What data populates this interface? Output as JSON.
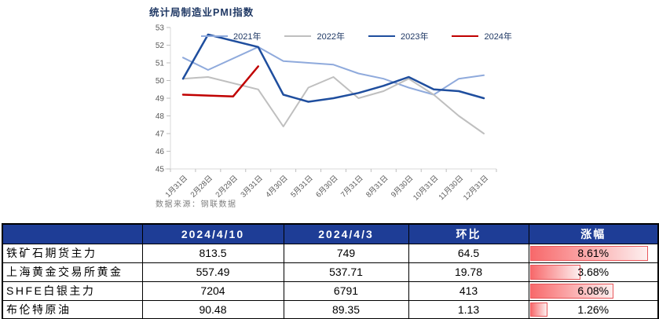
{
  "chart_data": {
    "type": "line",
    "title": "统计局制造业PMI指数",
    "source_note": "数据来源：钢联数据",
    "categories": [
      "1月31日",
      "2月28日",
      "2月29日",
      "3月31日",
      "4月30日",
      "5月31日",
      "6月30日",
      "7月31日",
      "8月31日",
      "9月30日",
      "10月31日",
      "11月30日",
      "12月31日"
    ],
    "series": [
      {
        "name": "2021年",
        "color": "#8FAADC",
        "values": [
          51.3,
          50.6,
          null,
          51.9,
          51.1,
          51.0,
          50.9,
          50.4,
          50.1,
          49.6,
          49.2,
          50.1,
          50.3
        ]
      },
      {
        "name": "2022年",
        "color": "#BFBFBF",
        "values": [
          50.1,
          50.2,
          null,
          49.5,
          47.4,
          49.6,
          50.2,
          49.0,
          49.4,
          50.1,
          49.2,
          48.0,
          47.0
        ]
      },
      {
        "name": "2023年",
        "color": "#1F4E9E",
        "values": [
          50.1,
          52.6,
          null,
          51.9,
          49.2,
          48.8,
          49.0,
          49.3,
          49.7,
          50.2,
          49.5,
          49.4,
          49.0
        ]
      },
      {
        "name": "2024年",
        "color": "#C00000",
        "values": [
          49.2,
          null,
          49.1,
          50.8,
          null,
          null,
          null,
          null,
          null,
          null,
          null,
          null,
          null
        ]
      }
    ],
    "ylim": [
      45,
      53
    ],
    "ytick_step": 1,
    "grid": false,
    "legend_position": "top"
  },
  "table": {
    "headers": [
      "",
      "2024/4/10",
      "2024/4/3",
      "环比",
      "涨幅"
    ],
    "rows": [
      {
        "label": "铁矿石期货主力",
        "current": "813.5",
        "previous": "749",
        "change": "64.5",
        "pct": "8.61%"
      },
      {
        "label": "上海黄金交易所黄金",
        "current": "557.49",
        "previous": "537.71",
        "change": "19.78",
        "pct": "3.68%"
      },
      {
        "label": "SHFE白银主力",
        "current": "7204",
        "previous": "6791",
        "change": "413",
        "pct": "6.08%"
      },
      {
        "label": "布伦特原油",
        "current": "90.48",
        "previous": "89.35",
        "change": "1.13",
        "pct": "1.26%"
      }
    ]
  },
  "colors": {
    "title_color": "#1F3864",
    "table_header_bg": "#1E3D96",
    "bar_fill_start": "#F8696B",
    "bar_fill_end": "#FDEFEF",
    "bar_border": "#E8575B",
    "axis_line": "#D9D9D9",
    "tick_mark": "#BFBFBF",
    "tick_label": "#595959"
  }
}
